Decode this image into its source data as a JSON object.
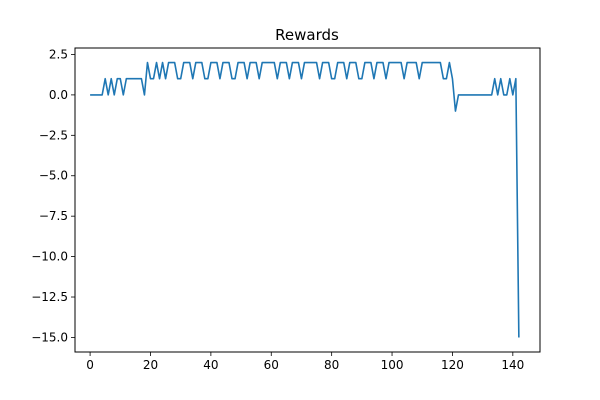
{
  "chart_data": {
    "type": "line",
    "title": "Rewards",
    "xlabel": "",
    "ylabel": "",
    "xlim": [
      -5,
      149
    ],
    "ylim": [
      -15.9,
      2.9
    ],
    "x_ticks": [
      0,
      20,
      40,
      60,
      80,
      100,
      120,
      140
    ],
    "x_tick_labels": [
      "0",
      "20",
      "40",
      "60",
      "80",
      "100",
      "120",
      "140"
    ],
    "y_ticks": [
      2.5,
      0,
      -2.5,
      -5,
      -7.5,
      -10,
      -12.5,
      -15
    ],
    "y_tick_labels": [
      "2.5",
      "0.0",
      "−2.5",
      "−5.0",
      "−7.5",
      "−10.0",
      "−12.5",
      "−15.0"
    ],
    "grid": false,
    "legend": "none",
    "line_color": "#1f77b4",
    "series": [
      {
        "values": [
          0,
          0,
          0,
          0,
          0,
          1,
          0,
          1,
          0,
          1,
          1,
          0,
          1,
          1,
          1,
          1,
          1,
          1,
          0,
          2,
          1,
          1,
          2,
          1,
          2,
          1,
          2,
          2,
          2,
          1,
          1,
          2,
          2,
          2,
          1,
          2,
          2,
          2,
          1,
          1,
          2,
          2,
          2,
          1,
          2,
          2,
          2,
          1,
          1,
          2,
          2,
          2,
          1,
          2,
          2,
          2,
          1,
          2,
          2,
          2,
          2,
          2,
          1,
          2,
          2,
          2,
          1,
          2,
          2,
          2,
          1,
          2,
          2,
          2,
          2,
          2,
          1,
          2,
          2,
          2,
          1,
          1,
          2,
          2,
          2,
          1,
          2,
          2,
          2,
          1,
          1,
          2,
          2,
          2,
          1,
          2,
          2,
          2,
          1,
          2,
          2,
          2,
          2,
          2,
          1,
          2,
          2,
          2,
          2,
          1,
          2,
          2,
          2,
          2,
          2,
          2,
          2,
          1,
          1,
          2,
          1,
          -1,
          0,
          0,
          0,
          0,
          0,
          0,
          0,
          0,
          0,
          0,
          0,
          0,
          1,
          0,
          1,
          0,
          0,
          1,
          0,
          1,
          -15
        ]
      }
    ]
  }
}
